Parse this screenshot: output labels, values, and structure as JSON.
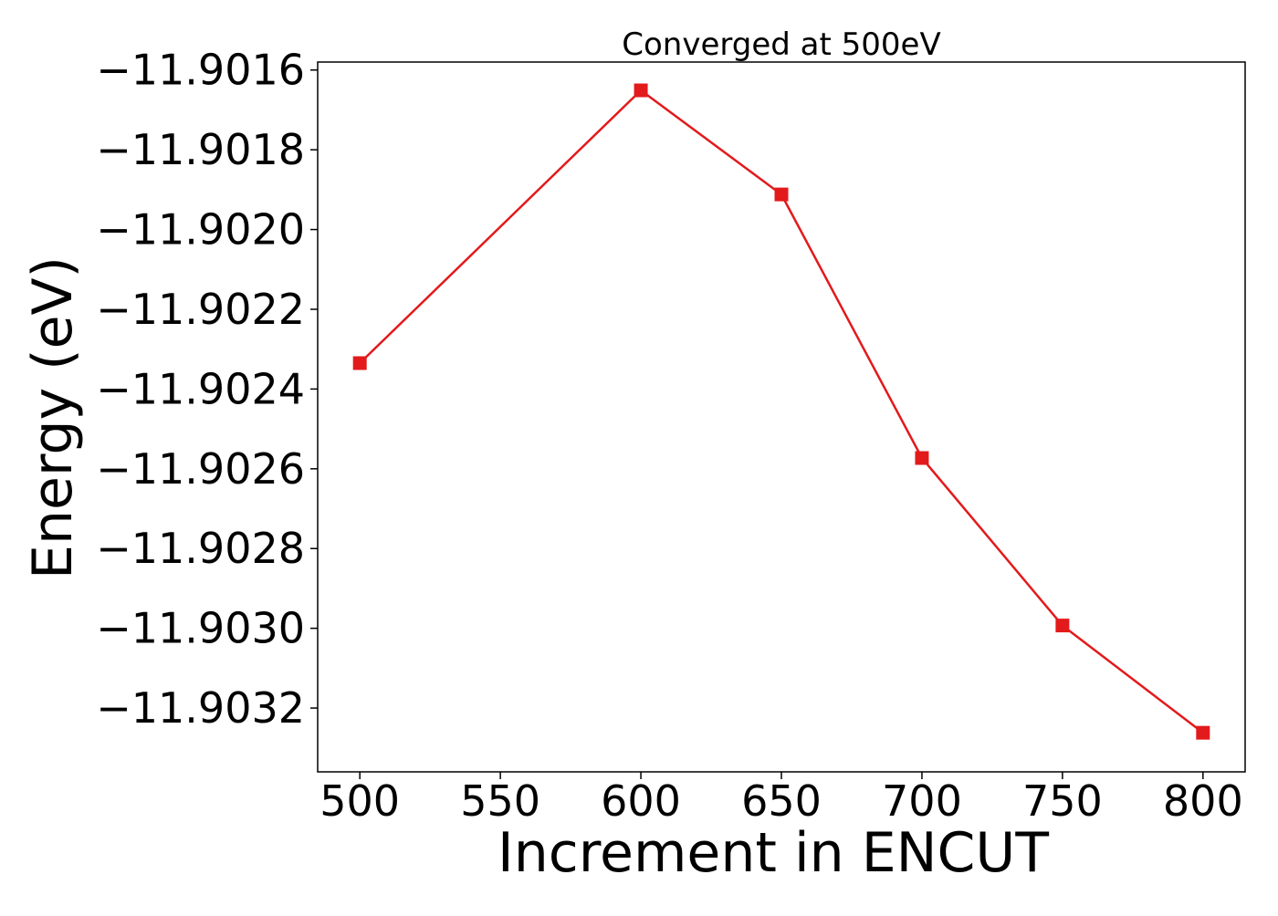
{
  "chart_data": {
    "type": "line",
    "title": "Converged at 500eV",
    "xlabel": "Increment in ENCUT",
    "ylabel": "Energy (eV)",
    "xlim": [
      485,
      815
    ],
    "ylim": [
      -11.90336,
      -11.90158
    ],
    "x_ticks": [
      500,
      550,
      600,
      650,
      700,
      750,
      800
    ],
    "x_tick_labels": [
      "500",
      "550",
      "600",
      "650",
      "700",
      "750",
      "800"
    ],
    "y_ticks": [
      -11.9016,
      -11.9018,
      -11.902,
      -11.9022,
      -11.9024,
      -11.9026,
      -11.9028,
      -11.903,
      -11.9032
    ],
    "y_tick_labels": [
      "−11.9016",
      "−11.9018",
      "−11.9020",
      "−11.9022",
      "−11.9024",
      "−11.9026",
      "−11.9028",
      "−11.9030",
      "−11.9032"
    ],
    "grid": false,
    "series": [
      {
        "color": "#e31a1c",
        "marker": "square",
        "x": [
          500,
          600,
          650,
          700,
          750,
          800
        ],
        "y": [
          -11.902335,
          -11.901651,
          -11.901912,
          -11.902573,
          -11.902993,
          -11.903262
        ]
      }
    ]
  }
}
